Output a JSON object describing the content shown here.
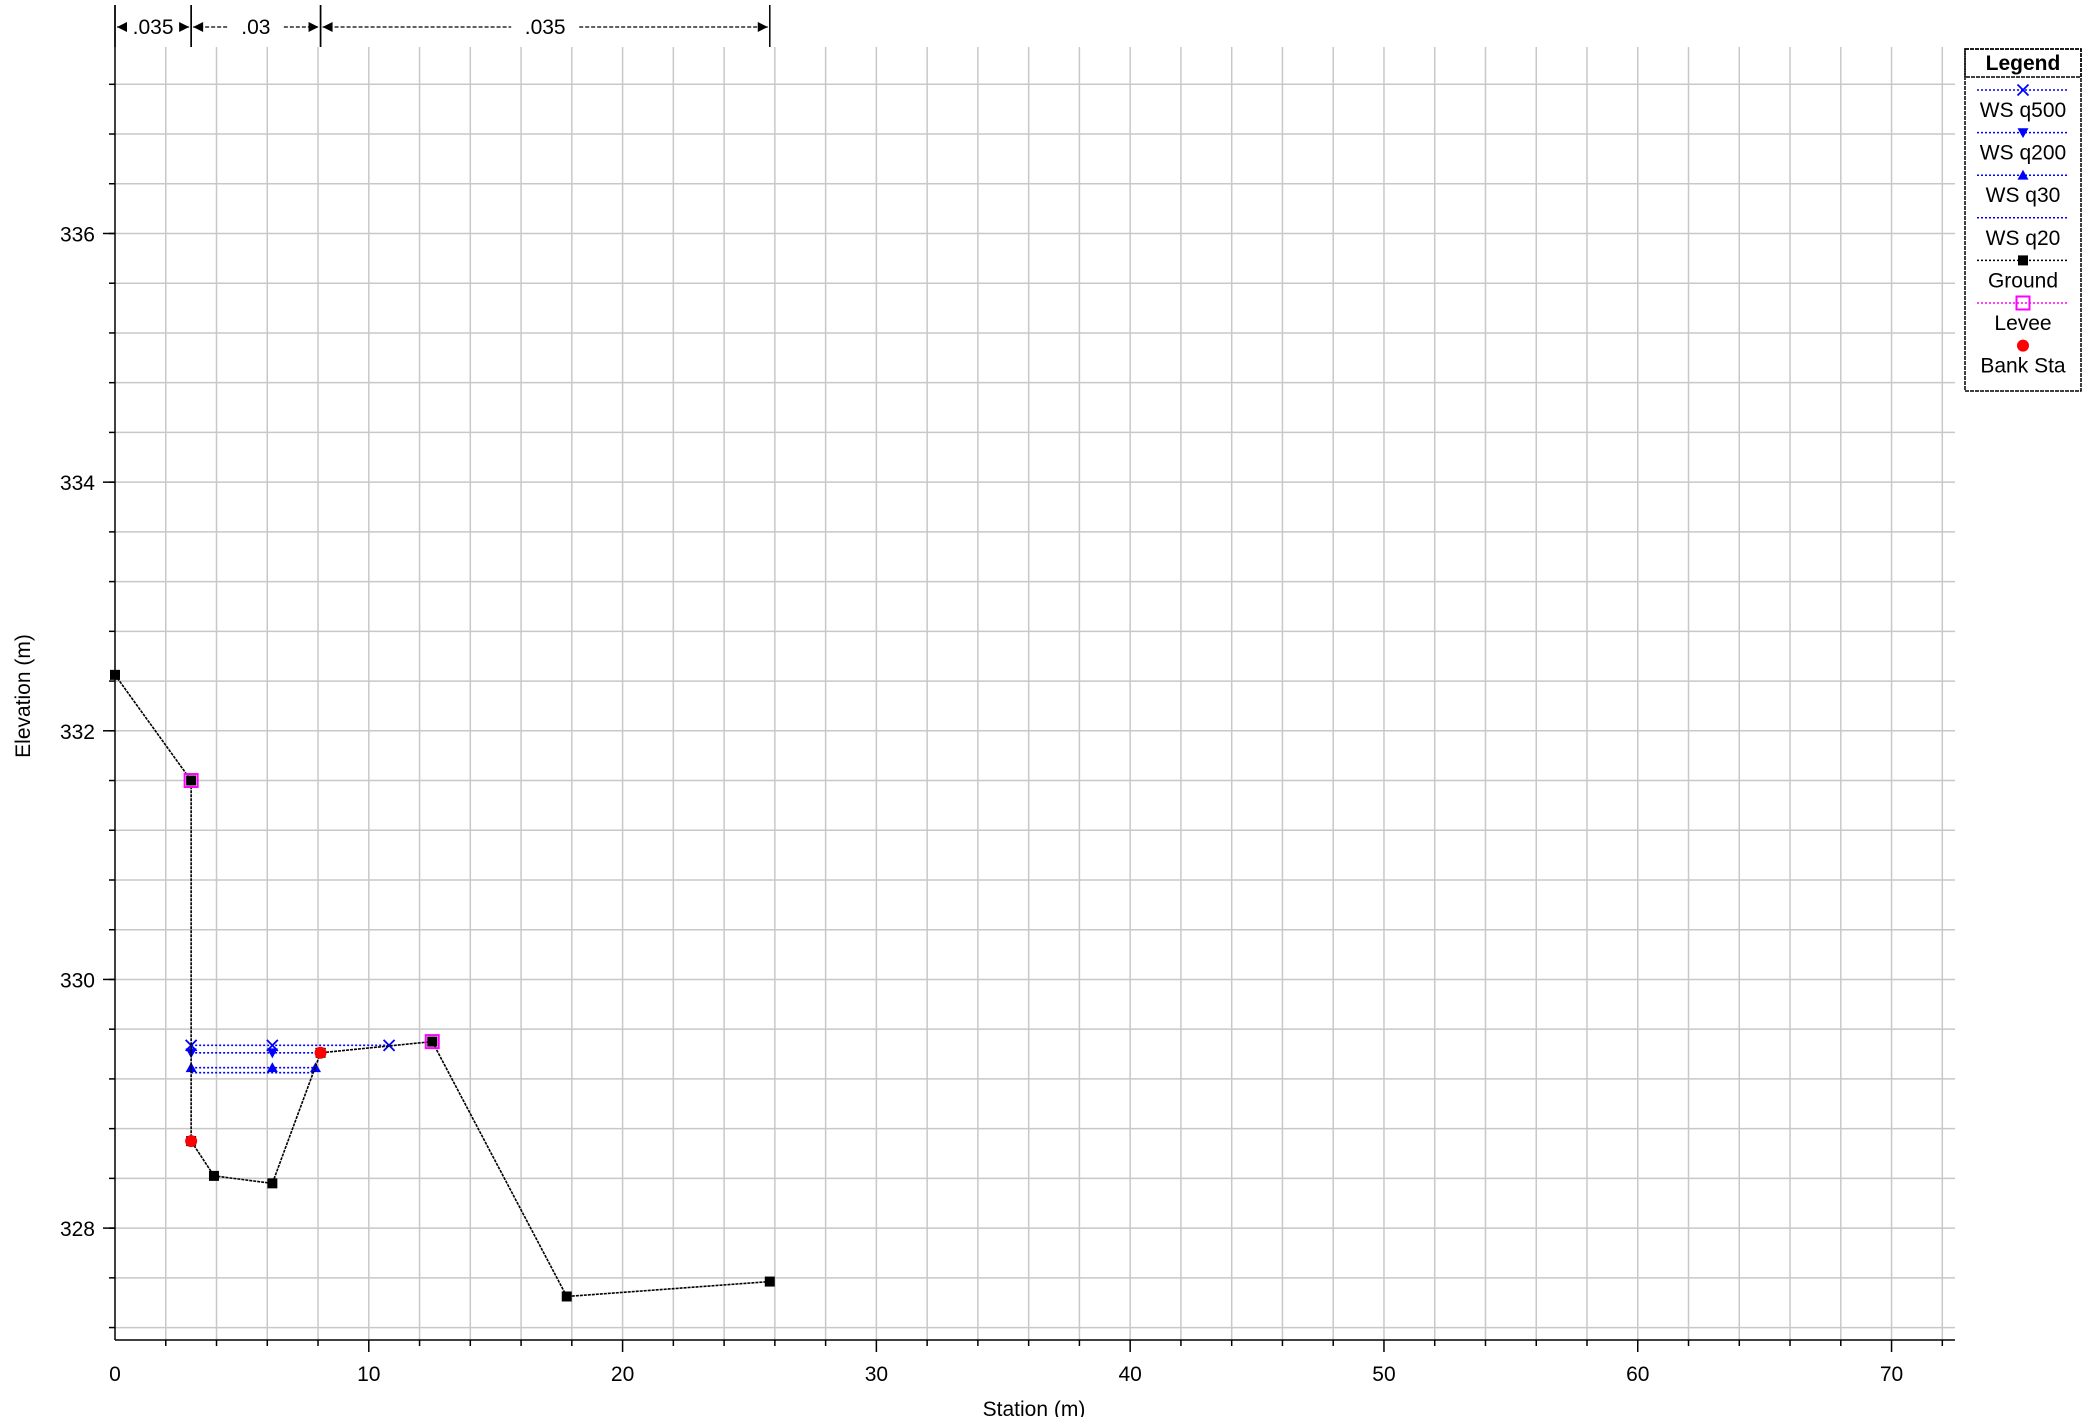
{
  "chart_data": {
    "type": "line",
    "xlabel": "Station (m)",
    "ylabel": "Elevation (m)",
    "xlim": [
      0,
      72.5
    ],
    "ylim": [
      327.1,
      337.5
    ],
    "x_ticks": [
      0,
      10,
      20,
      30,
      40,
      50,
      60,
      70
    ],
    "y_ticks": [
      328,
      330,
      332,
      334,
      336
    ],
    "grid": true,
    "legend_position": "top-right",
    "legend_title": "Legend",
    "mannings_n": [
      {
        "label": ".035",
        "from": 0,
        "to": 3.0
      },
      {
        "label": ".03",
        "from": 3.0,
        "to": 8.1
      },
      {
        "label": ".035",
        "from": 8.1,
        "to": 25.8
      }
    ],
    "series": [
      {
        "name": "WS q500",
        "color": "#0000ff",
        "marker": "x",
        "x": [
          3.0,
          6.2,
          10.8
        ],
        "y": [
          329.47,
          329.47,
          329.47
        ]
      },
      {
        "name": "WS q200",
        "color": "#0000ff",
        "marker": "triangle-down",
        "x": [
          3.0,
          6.2,
          8.1
        ],
        "y": [
          329.41,
          329.41,
          329.41
        ]
      },
      {
        "name": "WS q30",
        "color": "#0000ff",
        "marker": "triangle-up",
        "x": [
          3.0,
          6.2,
          7.9
        ],
        "y": [
          329.29,
          329.29,
          329.29
        ]
      },
      {
        "name": "WS q20",
        "color": "#0000ff",
        "marker": "none",
        "x": [
          3.0,
          7.8
        ],
        "y": [
          329.25,
          329.25
        ]
      },
      {
        "name": "Ground",
        "color": "#000000",
        "marker": "square",
        "x": [
          0,
          3.0,
          3.0,
          3.9,
          6.2,
          8.1,
          12.5,
          17.8,
          25.8
        ],
        "y": [
          332.45,
          331.6,
          328.7,
          328.42,
          328.36,
          329.41,
          329.5,
          327.45,
          327.57
        ]
      },
      {
        "name": "Levee",
        "color": "#ff00ff",
        "marker": "square-open",
        "x": [
          3.0,
          12.5
        ],
        "y": [
          331.6,
          329.5
        ]
      },
      {
        "name": "Bank Sta",
        "color": "#ff0000",
        "marker": "circle",
        "x": [
          3.0,
          8.1
        ],
        "y": [
          328.7,
          329.41
        ]
      }
    ]
  }
}
